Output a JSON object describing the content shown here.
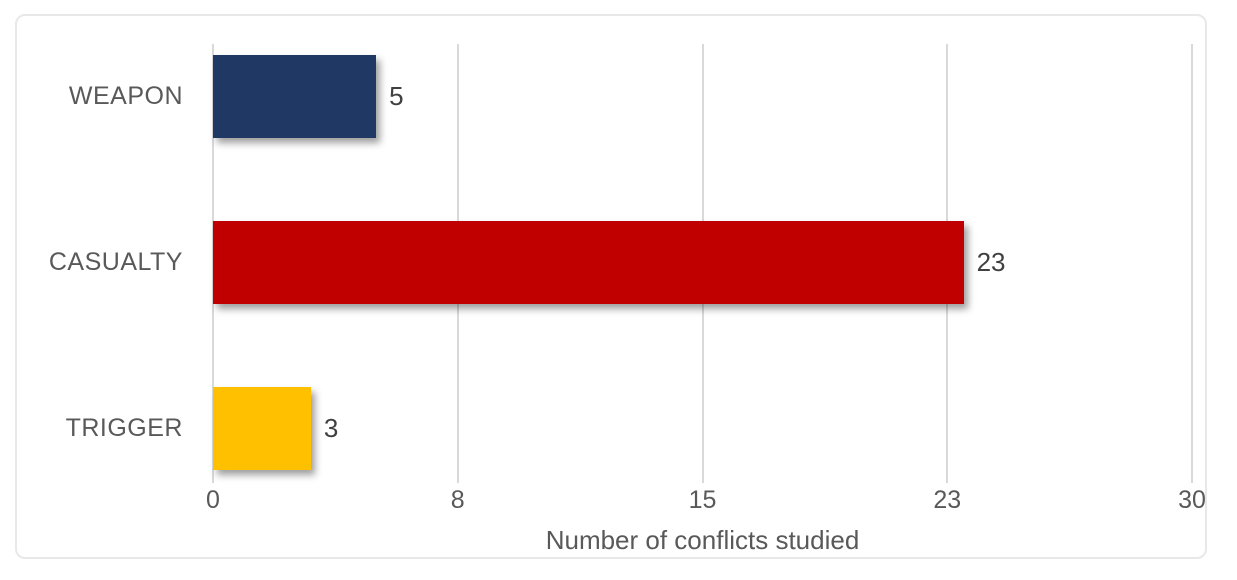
{
  "chart_data": {
    "type": "bar",
    "orientation": "horizontal",
    "title": "",
    "categories": [
      "WEAPON",
      "CASUALTY",
      "TRIGGER"
    ],
    "values": [
      5,
      23,
      3
    ],
    "data_labels": [
      "5",
      "23",
      "3"
    ],
    "bar_colors": [
      "#1F3864",
      "#C00000",
      "#FFC000"
    ],
    "xlabel": "Number of conflicts studied",
    "ylabel": "",
    "xlim": [
      0,
      30
    ],
    "x_ticks": [
      {
        "value": 0,
        "label": "0"
      },
      {
        "value": 7.5,
        "label": "8"
      },
      {
        "value": 15,
        "label": "15"
      },
      {
        "value": 22.5,
        "label": "23"
      },
      {
        "value": 30,
        "label": "30"
      }
    ],
    "grid": "vertical-major",
    "legend": "none",
    "colors": {
      "gridline": "#d9d9d9",
      "axis_text": "#595959",
      "data_label_text": "#404040",
      "frame_border": "#e8e8e8",
      "background": "#ffffff"
    }
  }
}
